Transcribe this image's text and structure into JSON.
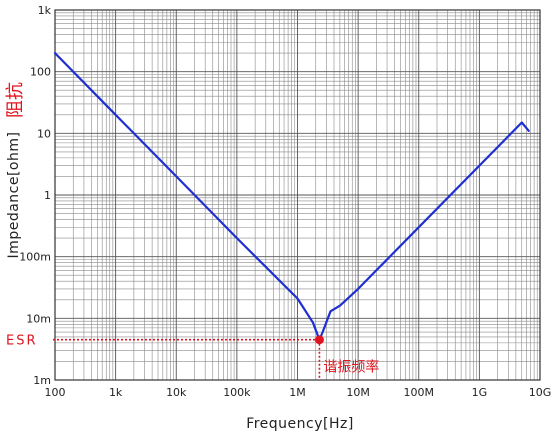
{
  "chart_data": {
    "type": "line",
    "x_scale": "log",
    "y_scale": "log",
    "xlim": [
      100,
      10000000000
    ],
    "ylim": [
      0.001,
      1000
    ],
    "x_ticks": [
      {
        "value": 100,
        "label": "100"
      },
      {
        "value": 1000,
        "label": "1k"
      },
      {
        "value": 10000,
        "label": "10k"
      },
      {
        "value": 100000,
        "label": "100k"
      },
      {
        "value": 1000000,
        "label": "1M"
      },
      {
        "value": 10000000,
        "label": "10M"
      },
      {
        "value": 100000000,
        "label": "100M"
      },
      {
        "value": 1000000000,
        "label": "1G"
      },
      {
        "value": 10000000000,
        "label": "10G"
      }
    ],
    "y_ticks": [
      {
        "value": 1000,
        "label": "1k"
      },
      {
        "value": 100,
        "label": "100"
      },
      {
        "value": 10,
        "label": "10"
      },
      {
        "value": 1,
        "label": "1"
      },
      {
        "value": 0.1,
        "label": "100m"
      },
      {
        "value": 0.01,
        "label": "10m"
      },
      {
        "value": 0.001,
        "label": "1m"
      }
    ],
    "xlabel": "Frequency[Hz]",
    "ylabel": "Impedance[ohm]",
    "ylabel_cn": "阻抗",
    "grid": true,
    "series": [
      {
        "color": "#1f2fd0",
        "x": [
          100,
          1000,
          10000,
          100000,
          1000000,
          1800000,
          2300000,
          2600000,
          3500000,
          5000000,
          10000000,
          100000000,
          1000000000,
          5000000000,
          6500000000
        ],
        "y": [
          200,
          20,
          2,
          0.2,
          0.021,
          0.0085,
          0.0045,
          0.006,
          0.013,
          0.016,
          0.03,
          0.3,
          3,
          15,
          11
        ]
      }
    ],
    "annotations": [
      {
        "name": "esr",
        "label": "ESR",
        "x": 2300000,
        "y": 0.0045,
        "color": "#e0141e"
      },
      {
        "name": "resonance",
        "label": "谐振频率",
        "x": 2300000,
        "y": 0.0045,
        "color": "#e0141e"
      }
    ]
  }
}
